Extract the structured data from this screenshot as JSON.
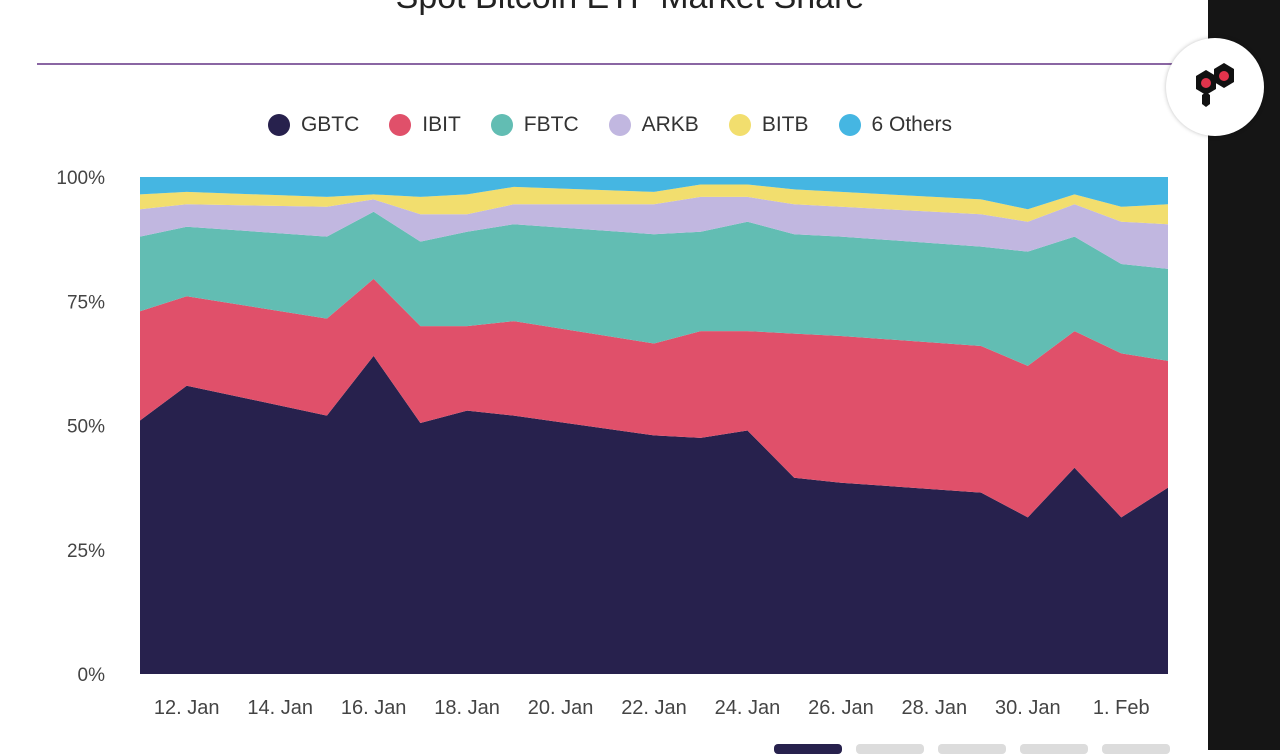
{
  "chart_data": {
    "type": "area",
    "stacked": true,
    "normalized": true,
    "title": "Spot Bitcoin ETF Market Share",
    "xlabel": "",
    "ylabel": "",
    "ylim": [
      0,
      100
    ],
    "y_ticks": [
      "0%",
      "25%",
      "50%",
      "75%",
      "100%"
    ],
    "x_ticks": [
      "12. Jan",
      "14. Jan",
      "16. Jan",
      "18. Jan",
      "20. Jan",
      "22. Jan",
      "24. Jan",
      "26. Jan",
      "28. Jan",
      "30. Jan",
      "1. Feb"
    ],
    "x": [
      "11. Jan",
      "12. Jan",
      "15. Jan",
      "16. Jan",
      "17. Jan",
      "18. Jan",
      "19. Jan",
      "22. Jan",
      "23. Jan",
      "24. Jan",
      "25. Jan",
      "26. Jan",
      "29. Jan",
      "30. Jan",
      "31. Jan",
      "1. Feb",
      "2. Feb"
    ],
    "grid": false,
    "legend_position": "top",
    "series": [
      {
        "name": "GBTC",
        "color": "#27214d",
        "values": [
          51,
          58,
          52,
          64,
          50.5,
          53,
          52,
          48,
          47.5,
          49,
          39.5,
          38.5,
          36.5,
          31.5,
          41.5,
          31.5,
          37.5
        ]
      },
      {
        "name": "IBIT",
        "color": "#e0506a",
        "values": [
          22,
          18,
          19.5,
          15.5,
          19.5,
          17,
          19,
          18.5,
          21.5,
          20,
          29,
          29.5,
          29.5,
          30.5,
          27.5,
          33,
          25.5
        ]
      },
      {
        "name": "FBTC",
        "color": "#62bdb3",
        "values": [
          15,
          14,
          16.5,
          13.5,
          17,
          19,
          19.5,
          22,
          20,
          22,
          20,
          20,
          20,
          23,
          19,
          18,
          18.5
        ]
      },
      {
        "name": "ARKB",
        "color": "#c1b7e0",
        "values": [
          5.5,
          4.5,
          6,
          2.5,
          5.5,
          3.5,
          4,
          6,
          7,
          5,
          6,
          6,
          6.5,
          6,
          6.5,
          8.5,
          9
        ]
      },
      {
        "name": "BITB",
        "color": "#f2de6e",
        "values": [
          3,
          2.5,
          2,
          1,
          3.5,
          4,
          3.5,
          2.5,
          2.5,
          2.5,
          3,
          3,
          3,
          2.5,
          2,
          3,
          4
        ]
      },
      {
        "name": "6 Others",
        "color": "#45b6e2",
        "values": [
          3.5,
          3,
          4,
          3.5,
          4,
          3.5,
          2,
          3,
          1.5,
          1.5,
          2.5,
          3,
          4.5,
          6.5,
          3.5,
          6,
          5.5
        ]
      }
    ]
  },
  "brand": {
    "logo_icon": "hexagon-logo-icon",
    "badge_bg": "#ffffff"
  },
  "decor": {
    "strip_color": "#151515",
    "rule_color": "#8a66a3"
  }
}
